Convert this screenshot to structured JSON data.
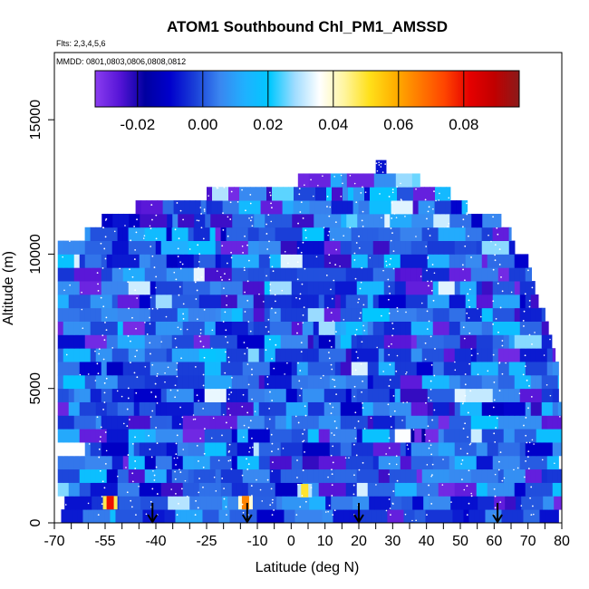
{
  "chart_data": {
    "type": "heatmap",
    "title": "ATOM1 Southbound Chl_PM1_AMSSD",
    "flights_label": "Flts: 2,3,4,5,6",
    "mmdd_label": "MMDD: 0801,0803,0806,0808,0812",
    "xlabel": "Latitude (deg N)",
    "ylabel": "Altitude (m)",
    "xlim": [
      -70,
      80
    ],
    "ylim": [
      0,
      17500
    ],
    "x_ticks": [
      -70,
      -55,
      -40,
      -25,
      -10,
      0,
      10,
      20,
      30,
      40,
      50,
      60,
      70,
      80
    ],
    "x_tick_labels": [
      "-70",
      "-55",
      "-40",
      "-25",
      "-10",
      "0",
      "10",
      "20",
      "30",
      "40",
      "50",
      "60",
      "70",
      "80"
    ],
    "x_minor_ticks": [
      -65,
      -60,
      -50,
      -45,
      -35,
      -30,
      -20,
      -15,
      -5,
      5,
      15,
      25,
      35,
      45,
      55,
      65,
      75
    ],
    "y_ticks": [
      0,
      5000,
      10000,
      15000
    ],
    "y_tick_labels": [
      "0",
      "5000",
      "10000",
      "15000"
    ],
    "colorbar": {
      "range": [
        -0.033,
        0.097
      ],
      "ticks": [
        -0.02,
        0.0,
        0.02,
        0.04,
        0.06,
        0.08
      ],
      "tick_labels": [
        "-0.02",
        "0.00",
        "0.02",
        "0.04",
        "0.06",
        "0.08"
      ],
      "colors": [
        "#8b3df0",
        "#5514d6",
        "#0000a0",
        "#0000cc",
        "#1a3fd8",
        "#3a86f0",
        "#1fb1ff",
        "#00c8ff",
        "#9fdcff",
        "#ffffff",
        "#fff59d",
        "#ffe01a",
        "#ffb000",
        "#ff7a00",
        "#ff4500",
        "#e60000",
        "#c10000",
        "#8b1a1a"
      ]
    },
    "arrow_latitudes": [
      -41,
      -13,
      20,
      61
    ],
    "band_step_m": 500,
    "profile_extents": [
      {
        "alt_top": 500,
        "lat_min": -68,
        "lat_max": 79
      },
      {
        "alt_top": 1000,
        "lat_min": -67,
        "lat_max": 80
      },
      {
        "alt_top": 1500,
        "lat_min": -69,
        "lat_max": 80
      },
      {
        "alt_top": 2000,
        "lat_min": -69,
        "lat_max": 80
      },
      {
        "alt_top": 2500,
        "lat_min": -69,
        "lat_max": 79
      },
      {
        "alt_top": 3000,
        "lat_min": -69,
        "lat_max": 80
      },
      {
        "alt_top": 3500,
        "lat_min": -69,
        "lat_max": 80
      },
      {
        "alt_top": 4000,
        "lat_min": -69,
        "lat_max": 80
      },
      {
        "alt_top": 4500,
        "lat_min": -69,
        "lat_max": 80
      },
      {
        "alt_top": 5000,
        "lat_min": -69,
        "lat_max": 79
      },
      {
        "alt_top": 5500,
        "lat_min": -69,
        "lat_max": 79
      },
      {
        "alt_top": 6000,
        "lat_min": -69,
        "lat_max": 79
      },
      {
        "alt_top": 6500,
        "lat_min": -69,
        "lat_max": 78
      },
      {
        "alt_top": 7000,
        "lat_min": -69,
        "lat_max": 77
      },
      {
        "alt_top": 7500,
        "lat_min": -69,
        "lat_max": 76
      },
      {
        "alt_top": 8000,
        "lat_min": -69,
        "lat_max": 75
      },
      {
        "alt_top": 8500,
        "lat_min": -69,
        "lat_max": 73
      },
      {
        "alt_top": 9000,
        "lat_min": -69,
        "lat_max": 72
      },
      {
        "alt_top": 9500,
        "lat_min": -69,
        "lat_max": 71
      },
      {
        "alt_top": 10000,
        "lat_min": -69,
        "lat_max": 70
      },
      {
        "alt_top": 10500,
        "lat_min": -69,
        "lat_max": 66
      },
      {
        "alt_top": 11000,
        "lat_min": -61,
        "lat_max": 65
      },
      {
        "alt_top": 11500,
        "lat_min": -56,
        "lat_max": 62
      },
      {
        "alt_top": 12000,
        "lat_min": -46,
        "lat_max": 52
      },
      {
        "alt_top": 12500,
        "lat_min": -25,
        "lat_max": 47
      },
      {
        "alt_top": 13000,
        "lat_min": 2,
        "lat_max": 38
      },
      {
        "alt_top": 13500,
        "lat_min": 25,
        "lat_max": 28
      }
    ],
    "hotspots": [
      {
        "lat": -53.5,
        "alt": 750,
        "value": 0.08
      },
      {
        "lat": -13.5,
        "alt": 750,
        "value": 0.065
      },
      {
        "lat": 4,
        "alt": 1200,
        "value": 0.05
      },
      {
        "lat": 37.5,
        "alt": 3250,
        "value": -0.03
      }
    ]
  }
}
